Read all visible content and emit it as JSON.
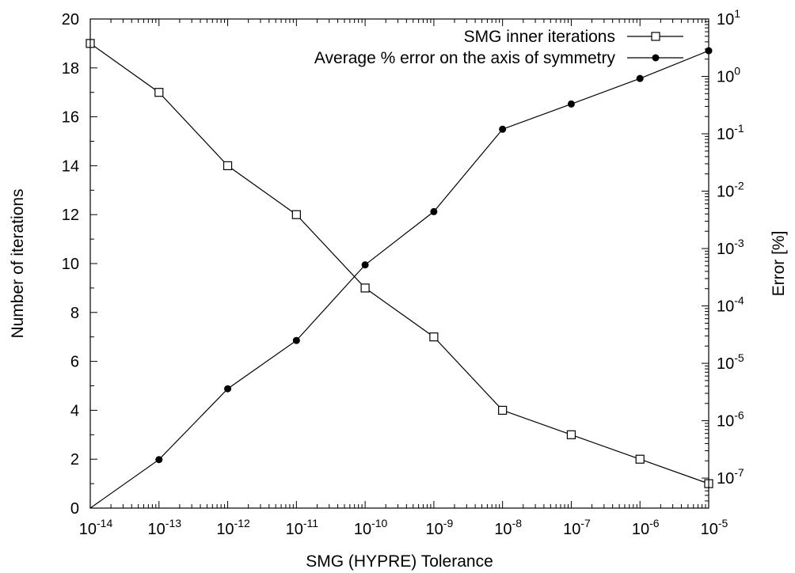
{
  "chart_data": {
    "type": "line",
    "xlabel": "SMG (HYPRE) Tolerance",
    "ylabel": "Number of iterations",
    "y2label": "Error [%]",
    "x_scale": "log",
    "y2_scale": "log",
    "xlim": [
      1e-14,
      1e-05
    ],
    "ylim": [
      0,
      20
    ],
    "y2lim": [
      3e-08,
      10
    ],
    "x_ticks": [
      {
        "base": "10",
        "exp": "-14",
        "value": 1e-14
      },
      {
        "base": "10",
        "exp": "-13",
        "value": 1e-13
      },
      {
        "base": "10",
        "exp": "-12",
        "value": 1e-12
      },
      {
        "base": "10",
        "exp": "-11",
        "value": 1e-11
      },
      {
        "base": "10",
        "exp": "-10",
        "value": 1e-10
      },
      {
        "base": "10",
        "exp": "-9",
        "value": 1e-09
      },
      {
        "base": "10",
        "exp": "-8",
        "value": 1e-08
      },
      {
        "base": "10",
        "exp": "-7",
        "value": 1e-07
      },
      {
        "base": "10",
        "exp": "-6",
        "value": 1e-06
      },
      {
        "base": "10",
        "exp": "-5",
        "value": 1e-05
      }
    ],
    "y_ticks": [
      "0",
      "2",
      "4",
      "6",
      "8",
      "10",
      "12",
      "14",
      "16",
      "18",
      "20"
    ],
    "y2_ticks": [
      {
        "base": "10",
        "exp": "1",
        "value": 10
      },
      {
        "base": "10",
        "exp": "0",
        "value": 1
      },
      {
        "base": "10",
        "exp": "-1",
        "value": 0.1
      },
      {
        "base": "10",
        "exp": "-2",
        "value": 0.01
      },
      {
        "base": "10",
        "exp": "-3",
        "value": 0.001
      },
      {
        "base": "10",
        "exp": "-4",
        "value": 0.0001
      },
      {
        "base": "10",
        "exp": "-5",
        "value": 1e-05
      },
      {
        "base": "10",
        "exp": "-6",
        "value": 1e-06
      },
      {
        "base": "10",
        "exp": "-7",
        "value": 1e-07
      }
    ],
    "grid": false,
    "legend_position": "top-right",
    "series": [
      {
        "name": "SMG inner iterations",
        "axis": "left",
        "marker": "open-square",
        "x": [
          1e-14,
          1e-13,
          1e-12,
          1e-11,
          1e-10,
          1e-09,
          1e-08,
          1e-07,
          1e-06,
          1e-05
        ],
        "values": [
          19,
          17,
          14,
          12,
          9,
          7,
          4,
          3,
          2,
          1
        ]
      },
      {
        "name": "Average % error on the axis of symmetry",
        "axis": "right",
        "marker": "filled-circle",
        "x": [
          1e-14,
          1e-13,
          1e-12,
          1e-11,
          1e-10,
          1e-09,
          1e-08,
          1e-07,
          1e-06,
          1e-05
        ],
        "values": [
          3e-08,
          2.1e-07,
          3.6e-06,
          2.5e-05,
          0.00052,
          0.0044,
          0.12,
          0.33,
          0.92,
          2.8
        ]
      }
    ]
  }
}
